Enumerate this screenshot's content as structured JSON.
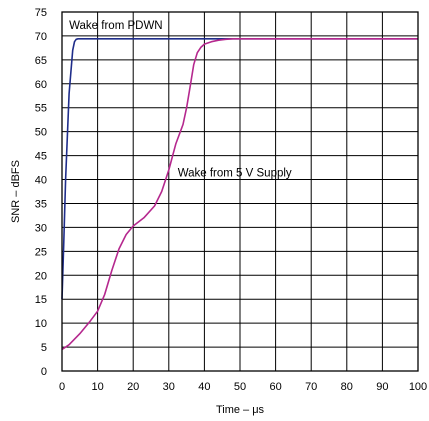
{
  "chart_data": {
    "type": "line",
    "title": "",
    "xlabel": "Time – μs",
    "ylabel": "SNR – dBFS",
    "xlim": [
      0,
      100
    ],
    "ylim": [
      0,
      75
    ],
    "x_ticks": [
      0,
      10,
      20,
      30,
      40,
      50,
      60,
      70,
      80,
      90,
      100
    ],
    "y_ticks": [
      0,
      5,
      10,
      15,
      20,
      25,
      30,
      35,
      40,
      45,
      50,
      55,
      60,
      65,
      70,
      75
    ],
    "grid": true,
    "legend": "none",
    "series": [
      {
        "name": "Wake from PDWN",
        "color": "#1f2d8a",
        "x": [
          0,
          0.5,
          1,
          2,
          3,
          3.5,
          4,
          4.5,
          10,
          20,
          40,
          60,
          80,
          100
        ],
        "y": [
          15,
          27,
          40,
          58,
          67,
          68.8,
          69.3,
          69.4,
          69.4,
          69.4,
          69.4,
          69.4,
          69.4,
          69.4
        ]
      },
      {
        "name": "Wake from 5 V Supply",
        "color": "#b5288e",
        "x": [
          0,
          2,
          5,
          8,
          10,
          12,
          14,
          16,
          18,
          20,
          23,
          26,
          28,
          30,
          32,
          34,
          35,
          36,
          37,
          38,
          39,
          40,
          42,
          44,
          46,
          48,
          50,
          60,
          70,
          80,
          90,
          100
        ],
        "y": [
          4.5,
          5.5,
          7.8,
          10.5,
          12.5,
          16,
          21,
          25.5,
          28.5,
          30.3,
          32,
          34.5,
          37.5,
          42,
          47.5,
          51.5,
          55,
          59.5,
          64,
          66.5,
          67.6,
          68.3,
          68.8,
          69.1,
          69.3,
          69.4,
          69.4,
          69.4,
          69.4,
          69.4,
          69.4,
          69.4
        ]
      }
    ],
    "annotations": [
      {
        "text": "Wake from PDWN",
        "x": 2,
        "y": 72.3
      },
      {
        "text": "Wake from 5 V Supply",
        "x": 32.5,
        "y": 41.5
      }
    ]
  }
}
